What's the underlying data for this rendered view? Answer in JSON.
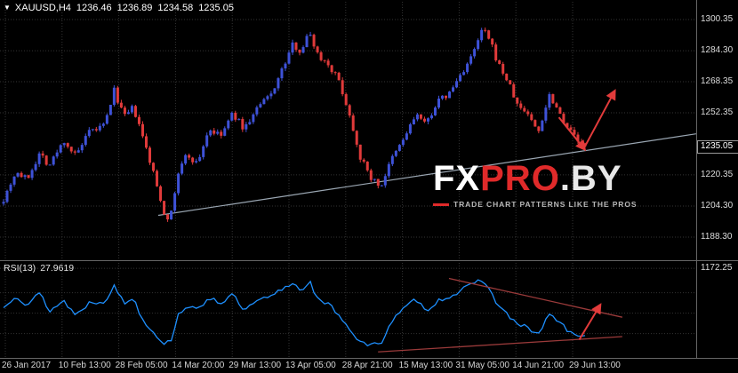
{
  "window": {
    "symbol_info": {
      "symbol": "XAUUSD,H4",
      "open": "1236.46",
      "high": "1236.89",
      "low": "1234.58",
      "close": "1235.05"
    },
    "watermark": {
      "fx": "FX",
      "pro": "PRO",
      "by": ".BY",
      "tagline": "TRADE CHART PATTERNS LIKE THE PROS"
    },
    "colors": {
      "bull": "#3e52d8",
      "bear": "#e03a3a",
      "rsi_line": "#1e90ff",
      "grid": "#333333",
      "trendline": "#9aa6b2",
      "arrow": "#e23b3b",
      "wedge": "#9a3a3a",
      "separator": "#666666",
      "axis_text": "#dcdcdc"
    }
  },
  "chart_data": [
    {
      "type": "candlestick",
      "title": "XAUUSD H4",
      "ohlc_last": {
        "open": 1236.46,
        "high": 1236.89,
        "low": 1234.58,
        "close": 1235.05
      },
      "current_price_label": "1235.05",
      "y_ticks": [
        "1300.35",
        "1284.30",
        "1268.35",
        "1252.35",
        "1220.35",
        "1204.30",
        "1188.30",
        "1172.25"
      ],
      "x_labels": [
        "26 Jan 2017",
        "10 Feb 13:00",
        "28 Feb 05:00",
        "14 Mar 20:00",
        "29 Mar 13:00",
        "13 Apr 05:00",
        "28 Apr 21:00",
        "15 May 13:00",
        "31 May 05:00",
        "14 Jun 21:00",
        "29 Jun 13:00"
      ],
      "ylim": [
        1176.4,
        1302.2
      ],
      "price_path": {
        "t": [
          0,
          0.021,
          0.04,
          0.063,
          0.078,
          0.104,
          0.124,
          0.147,
          0.174,
          0.19,
          0.208,
          0.223,
          0.239,
          0.257,
          0.277,
          0.287,
          0.3,
          0.315,
          0.333,
          0.353,
          0.373,
          0.394,
          0.414,
          0.437,
          0.46,
          0.48,
          0.498,
          0.511,
          0.526,
          0.541,
          0.56,
          0.578,
          0.598,
          0.613,
          0.629,
          0.648,
          0.667,
          0.69,
          0.71,
          0.725,
          0.746,
          0.766,
          0.786,
          0.807,
          0.824,
          0.838,
          0.85,
          0.868,
          0.884,
          0.902,
          0.919,
          0.939,
          0.957,
          0.972,
          0.988,
          1.0
        ],
        "p": [
          1208,
          1222,
          1218,
          1232,
          1225,
          1238,
          1230,
          1242,
          1246,
          1264,
          1250,
          1255,
          1240,
          1222,
          1200,
          1198,
          1221,
          1231,
          1226,
          1244,
          1240,
          1252,
          1244,
          1255,
          1262,
          1275,
          1288,
          1284,
          1294,
          1282,
          1277,
          1268,
          1248,
          1230,
          1220,
          1214,
          1228,
          1240,
          1252,
          1246,
          1258,
          1262,
          1272,
          1282,
          1296,
          1288,
          1278,
          1268,
          1256,
          1252,
          1242,
          1262,
          1252,
          1244,
          1238,
          1235
        ]
      },
      "trendline": {
        "t1": 0.266,
        "p1": 1199.5,
        "t2": 1.191,
        "p2": 1241.5
      },
      "forecast": {
        "down": {
          "t1": 0.955,
          "p1": 1250,
          "t2": 0.998,
          "p2": 1234
        },
        "up": {
          "t1": 0.998,
          "p1": 1234,
          "t2": 1.05,
          "p2": 1263
        }
      }
    },
    {
      "type": "line",
      "name": "RSI",
      "label": "RSI(13)",
      "current_value": "27.9619",
      "levels": [
        70,
        50,
        30
      ],
      "range_visible": [
        7,
        101
      ],
      "rsi_path": {
        "t": [
          0,
          0.021,
          0.04,
          0.063,
          0.078,
          0.104,
          0.124,
          0.147,
          0.174,
          0.19,
          0.208,
          0.223,
          0.239,
          0.257,
          0.277,
          0.287,
          0.3,
          0.315,
          0.333,
          0.353,
          0.373,
          0.394,
          0.414,
          0.437,
          0.46,
          0.48,
          0.498,
          0.511,
          0.526,
          0.541,
          0.56,
          0.578,
          0.598,
          0.613,
          0.629,
          0.648,
          0.667,
          0.69,
          0.71,
          0.725,
          0.746,
          0.766,
          0.786,
          0.807,
          0.824,
          0.838,
          0.85,
          0.868,
          0.884,
          0.902,
          0.919,
          0.939,
          0.957,
          0.972,
          0.988,
          1.0
        ],
        "v": [
          55,
          68,
          58,
          70,
          52,
          62,
          48,
          60,
          62,
          76,
          60,
          65,
          44,
          32,
          20,
          22,
          48,
          58,
          52,
          66,
          60,
          68,
          52,
          62,
          66,
          74,
          80,
          72,
          82,
          62,
          58,
          48,
          32,
          22,
          18,
          20,
          42,
          55,
          64,
          52,
          62,
          66,
          72,
          78,
          84,
          70,
          58,
          48,
          38,
          36,
          28,
          50,
          40,
          32,
          26,
          27.96
        ]
      },
      "wedge": {
        "upper": {
          "t1": 0.766,
          "v1": 84,
          "t2": 1.064,
          "v2": 46
        },
        "lower": {
          "t1": 0.644,
          "v1": 12,
          "t2": 1.064,
          "v2": 27
        }
      },
      "arrow": {
        "t1": 0.99,
        "v1": 24,
        "t2": 1.025,
        "v2": 57
      }
    }
  ]
}
